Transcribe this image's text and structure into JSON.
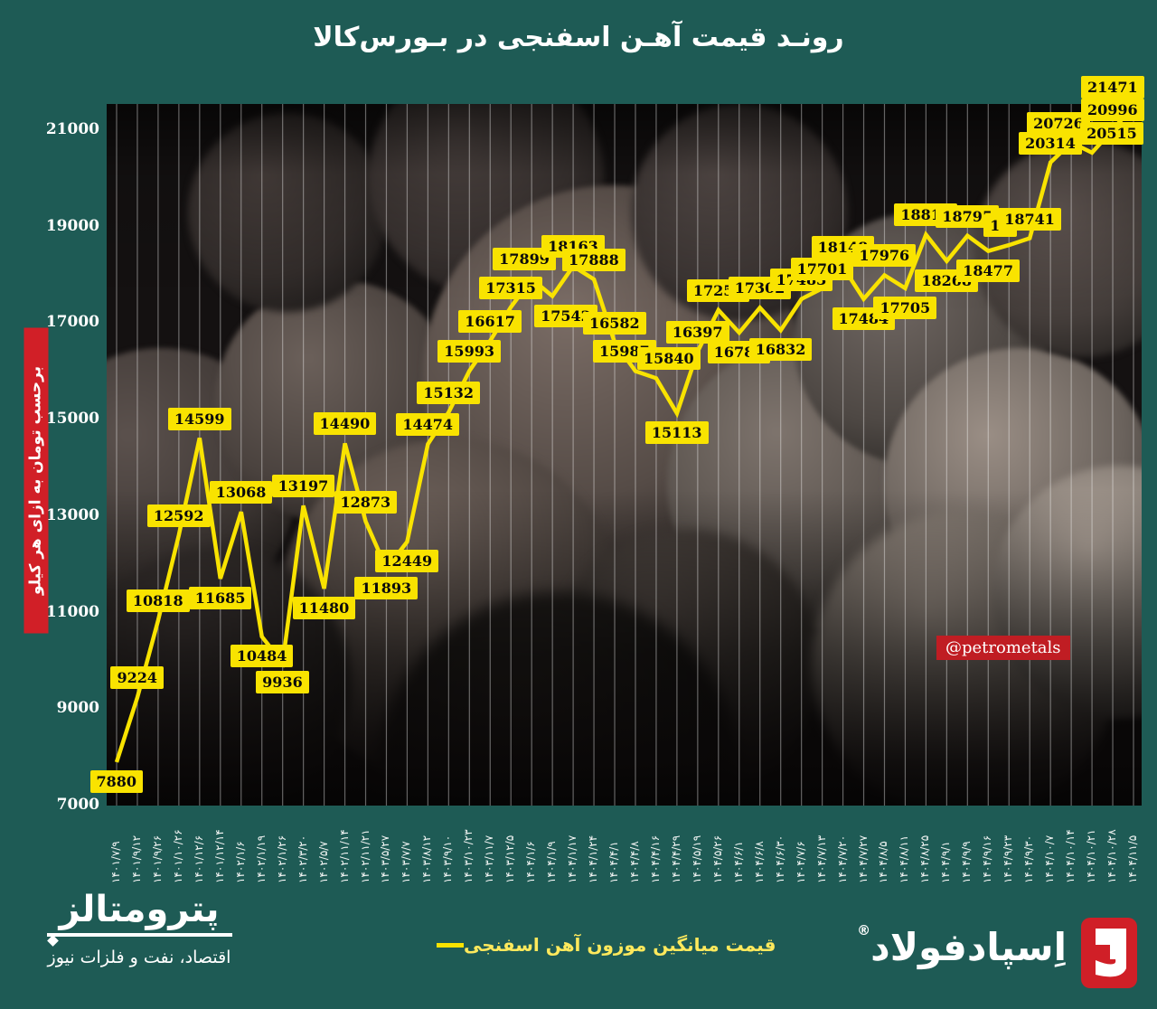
{
  "title": "رونـد قیمت آهـن اسفنجی در بـورس‌کالا",
  "y_axis": {
    "unit_label": "برحسب تومان به ازای هر کیلو",
    "ticks": [
      21000,
      19000,
      17000,
      15000,
      13000,
      11000,
      9000,
      7000
    ]
  },
  "watermark": "@petrometals",
  "legend": {
    "label": "قیمت میانگین موزون آهن اسفنجی"
  },
  "footer": {
    "left_logo": {
      "name": "پترومتالز",
      "tagline": "اقتصاد، نفت و فلزات نیوز"
    },
    "right_logo": {
      "name": "اِسپادفولاد",
      "reg_mark": "®"
    }
  },
  "colors": {
    "background_teal": "#1e5b55",
    "accent_yellow": "#f9e300",
    "legend_yellow": "#ffe95c",
    "red": "#d11f27",
    "label_text": "#0b0b0b",
    "white": "#ffffff"
  },
  "chart_data": {
    "type": "line",
    "title": "روند قیمت آهن اسفنجی در بورس‌کالا",
    "ylabel": "برحسب تومان به ازای هر کیلو",
    "ylim": [
      7000,
      21000
    ],
    "grid": "vertical-only",
    "x": [
      "۱۴۰۱/۷/۹",
      "۱۴۰۱/۹/۱۲",
      "۱۴۰۱/۹/۲۶",
      "۱۴۰۱/۱۰/۲۶",
      "۱۴۰۱/۱۲/۶",
      "۱۴۰۱/۱۲/۱۴",
      "۱۴۰۲/۱/۶",
      "۱۴۰۲/۱/۱۹",
      "۱۴۰۲/۱/۲۶",
      "۱۴۰۲/۳/۲۰",
      "۱۴۰۲/۵/۷",
      "۱۴۰۲/۱۱/۱۴",
      "۱۴۰۲/۱۱/۲۱",
      "۱۴۰۳/۵/۲۷",
      "۱۴۰۳/۷/۷",
      "۱۴۰۳/۸/۱۲",
      "۱۴۰۳/۹/۱۰",
      "۱۴۰۳/۱۰/۲۳",
      "۱۴۰۳/۱۱/۷",
      "۱۴۰۳/۱۲/۵",
      "۱۴۰۴/۱/۶",
      "۱۴۰۴/۱/۹",
      "۱۴۰۴/۱/۱۷",
      "۱۴۰۴/۱/۲۴",
      "۱۴۰۴/۴/۱",
      "۱۴۰۴/۴/۸",
      "۱۴۰۴/۴/۱۶",
      "۱۴۰۴/۴/۲۹",
      "۱۴۰۴/۵/۱۹",
      "۱۴۰۴/۵/۲۶",
      "۱۴۰۴/۶/۱",
      "۱۴۰۴/۶/۸",
      "۱۴۰۴/۶/۳۰",
      "۱۴۰۴/۷/۶",
      "۱۴۰۴/۷/۱۳",
      "۱۴۰۴/۷/۲۰",
      "۱۴۰۴/۷/۲۷",
      "۱۴۰۴/۸/۵",
      "۱۴۰۴/۸/۱۱",
      "۱۴۰۴/۸/۲۵",
      "۱۴۰۴/۹/۱",
      "۱۴۰۴/۹/۹",
      "۱۴۰۴/۹/۱۶",
      "۱۴۰۴/۹/۲۳",
      "۱۴۰۴/۹/۳۰",
      "۱۴۰۴/۱۰/۷",
      "۱۴۰۴/۱۰/۱۴",
      "۱۴۰۴/۱۰/۲۱",
      "۱۴۰۴/۱۰/۲۸",
      "۱۴۰۴/۱۱/۵"
    ],
    "series": [
      {
        "name": "قیمت میانگین موزون آهن اسفنجی",
        "values": [
          7880,
          9224,
          10818,
          12592,
          14599,
          11685,
          13068,
          10484,
          9936,
          13197,
          11480,
          14490,
          12873,
          11893,
          12449,
          14474,
          15132,
          15993,
          16617,
          17315,
          17899,
          17542,
          18163,
          17888,
          16582,
          15987,
          15840,
          15113,
          16397,
          17254,
          16783,
          17302,
          16832,
          17483,
          17701,
          18148,
          17484,
          17976,
          17705,
          18817,
          18268,
          18795,
          18477,
          18600,
          18741,
          20314,
          20726,
          20515,
          20996,
          21471
        ],
        "point_labels": [
          "7880",
          "9224",
          "10818",
          "12592",
          "14599",
          "11685",
          "13068",
          "10484",
          "9936",
          "13197",
          "11480",
          "14490",
          "12873",
          "11893",
          "12449",
          "14474",
          "15132",
          "15993",
          "16617",
          "17315",
          "17899",
          "17542",
          "18163",
          "17888",
          "16582",
          "15987",
          "15840",
          "15113",
          "16397",
          "17254",
          "16783",
          "17302",
          "16832",
          "17483",
          "17701",
          "18148",
          "17484",
          "17976",
          "17705",
          "18817",
          "18268",
          "18795",
          "18477",
          "18",
          "18741",
          "20314",
          "20726",
          "20515",
          "20996",
          "21471"
        ]
      }
    ],
    "note": "Point label at index 43 is partially occluded in the source image (only '18' visible); value 18600 estimated from line position. Legend at bottom center; y-axis unit label on red banner at left."
  }
}
